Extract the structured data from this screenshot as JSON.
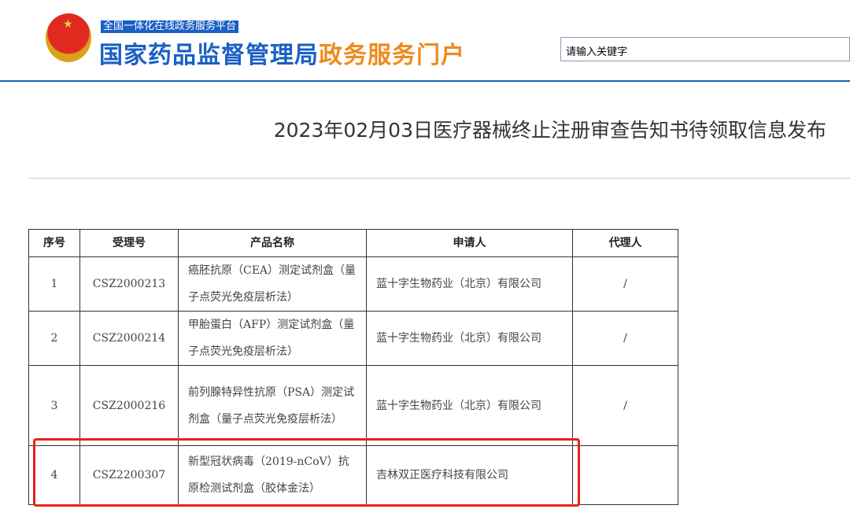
{
  "header": {
    "platform_label": "全国一体化在线政务服务平台",
    "site_name_blue": "国家药品监督管理局",
    "site_name_orange": "政务服务门户",
    "search_placeholder": "请输入关键字",
    "emblem_icon": "national-emblem-icon"
  },
  "page": {
    "title": "2023年02月03日医疗器械终止注册审查告知书待领取信息发布"
  },
  "table": {
    "headers": [
      "序号",
      "受理号",
      "产品名称",
      "申请人",
      "代理人"
    ],
    "rows": [
      {
        "no": "1",
        "id": "CSZ2000213",
        "product": "癌胚抗原（CEA）测定试剂盒（量子点荧光免疫层析法）",
        "applicant": "蓝十字生物药业（北京）有限公司",
        "agent": "/"
      },
      {
        "no": "2",
        "id": "CSZ2000214",
        "product": "甲胎蛋白（AFP）测定试剂盒（量子点荧光免疫层析法）",
        "applicant": "蓝十字生物药业（北京）有限公司",
        "agent": "/"
      },
      {
        "no": "3",
        "id": "CSZ2000216",
        "product": "前列腺特异性抗原（PSA）测定试剂盒（量子点荧光免疫层析法）",
        "applicant": "蓝十字生物药业（北京）有限公司",
        "agent": "/"
      },
      {
        "no": "4",
        "id": "CSZ2200307",
        "product": "新型冠状病毒（2019-nCoV）抗原检测试剂盒（胶体金法）",
        "applicant": "吉林双正医疗科技有限公司",
        "agent": ""
      }
    ]
  },
  "highlight_color": "#e8231c",
  "brand_blue": "#1a5fc4",
  "brand_orange": "#ef8a1f"
}
